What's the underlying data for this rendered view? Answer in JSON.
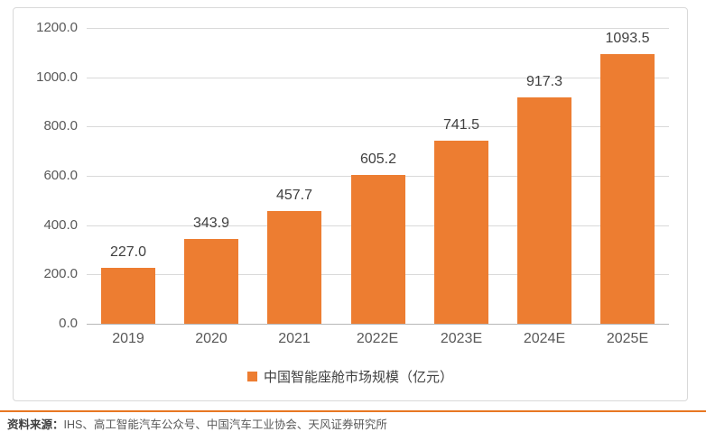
{
  "chart_data": {
    "type": "bar",
    "categories": [
      "2019",
      "2020",
      "2021",
      "2022E",
      "2023E",
      "2024E",
      "2025E"
    ],
    "values": [
      227.0,
      343.9,
      457.7,
      605.2,
      741.5,
      917.3,
      1093.5
    ],
    "data_labels": [
      "227.0",
      "343.9",
      "457.7",
      "605.2",
      "741.5",
      "917.3",
      "1093.5"
    ],
    "title": "",
    "xlabel": "",
    "ylabel": "",
    "ylim": [
      0,
      1200
    ],
    "ytick_step": 200,
    "ytick_labels": [
      "0.0",
      "200.0",
      "400.0",
      "600.0",
      "800.0",
      "1000.0",
      "1200.0"
    ],
    "grid": "horizontal",
    "legend_position": "bottom",
    "legend": "中国智能座舱市场规模（亿元）"
  },
  "colors": {
    "bar": "#ED7D31",
    "legend_swatch": "#ED7D31",
    "gridline": "#D9D9D9",
    "zero_axis": "#B7B7B7",
    "tick_text": "#595959",
    "data_label_text": "#404040",
    "divider": "#E87722"
  },
  "source": {
    "label": "资料来源：",
    "text": "IHS、高工智能汽车公众号、中国汽车工业协会、天风证券研究所"
  }
}
